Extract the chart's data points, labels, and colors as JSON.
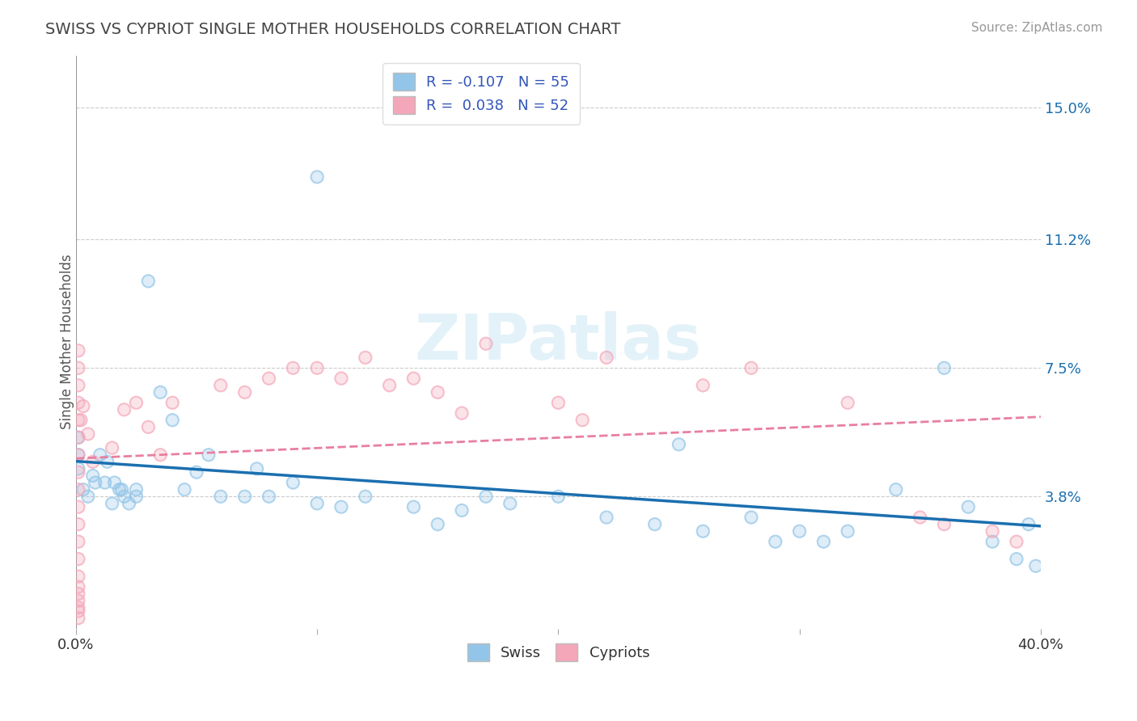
{
  "title": "SWISS VS CYPRIOT SINGLE MOTHER HOUSEHOLDS CORRELATION CHART",
  "source": "Source: ZipAtlas.com",
  "ylabel": "Single Mother Households",
  "xlim": [
    0.0,
    0.4
  ],
  "ylim": [
    0.0,
    0.165
  ],
  "yticks": [
    0.038,
    0.075,
    0.112,
    0.15
  ],
  "ytick_labels": [
    "3.8%",
    "7.5%",
    "11.2%",
    "15.0%"
  ],
  "xticks": [
    0.0,
    0.1,
    0.2,
    0.3,
    0.4
  ],
  "xtick_labels": [
    "0.0%",
    "",
    "",
    "",
    "40.0%"
  ],
  "swiss_color": "#93c5e8",
  "cypriot_color": "#f4a7b9",
  "swiss_line_color": "#1a6faf",
  "cypriot_line_color": "#e87fa0",
  "swiss_R": -0.107,
  "swiss_N": 55,
  "cypriot_R": 0.038,
  "cypriot_N": 52,
  "watermark": "ZIPatlas",
  "legend_R_color": "#3355bb",
  "swiss_x": [
    0.001,
    0.001,
    0.001,
    0.003,
    0.005,
    0.007,
    0.008,
    0.01,
    0.012,
    0.013,
    0.015,
    0.016,
    0.018,
    0.019,
    0.02,
    0.022,
    0.025,
    0.025,
    0.03,
    0.035,
    0.04,
    0.045,
    0.05,
    0.055,
    0.06,
    0.07,
    0.075,
    0.08,
    0.09,
    0.1,
    0.1,
    0.11,
    0.12,
    0.14,
    0.15,
    0.16,
    0.17,
    0.18,
    0.2,
    0.22,
    0.24,
    0.25,
    0.26,
    0.28,
    0.29,
    0.3,
    0.31,
    0.32,
    0.34,
    0.36,
    0.37,
    0.38,
    0.39,
    0.395,
    0.398
  ],
  "swiss_y": [
    0.05,
    0.046,
    0.055,
    0.04,
    0.038,
    0.044,
    0.042,
    0.05,
    0.042,
    0.048,
    0.036,
    0.042,
    0.04,
    0.04,
    0.038,
    0.036,
    0.04,
    0.038,
    0.1,
    0.068,
    0.06,
    0.04,
    0.045,
    0.05,
    0.038,
    0.038,
    0.046,
    0.038,
    0.042,
    0.036,
    0.13,
    0.035,
    0.038,
    0.035,
    0.03,
    0.034,
    0.038,
    0.036,
    0.038,
    0.032,
    0.03,
    0.053,
    0.028,
    0.032,
    0.025,
    0.028,
    0.025,
    0.028,
    0.04,
    0.075,
    0.035,
    0.025,
    0.02,
    0.03,
    0.018
  ],
  "cypriot_x": [
    0.001,
    0.001,
    0.001,
    0.001,
    0.001,
    0.001,
    0.001,
    0.001,
    0.001,
    0.001,
    0.001,
    0.001,
    0.001,
    0.001,
    0.001,
    0.001,
    0.001,
    0.001,
    0.001,
    0.001,
    0.002,
    0.003,
    0.005,
    0.007,
    0.015,
    0.02,
    0.025,
    0.03,
    0.035,
    0.04,
    0.06,
    0.07,
    0.08,
    0.09,
    0.1,
    0.11,
    0.12,
    0.13,
    0.14,
    0.15,
    0.16,
    0.17,
    0.2,
    0.21,
    0.22,
    0.26,
    0.28,
    0.32,
    0.35,
    0.36,
    0.38,
    0.39
  ],
  "cypriot_y": [
    0.08,
    0.075,
    0.07,
    0.065,
    0.06,
    0.055,
    0.05,
    0.045,
    0.04,
    0.035,
    0.03,
    0.025,
    0.02,
    0.015,
    0.012,
    0.01,
    0.008,
    0.006,
    0.005,
    0.003,
    0.06,
    0.064,
    0.056,
    0.048,
    0.052,
    0.063,
    0.065,
    0.058,
    0.05,
    0.065,
    0.07,
    0.068,
    0.072,
    0.075,
    0.075,
    0.072,
    0.078,
    0.07,
    0.072,
    0.068,
    0.062,
    0.082,
    0.065,
    0.06,
    0.078,
    0.07,
    0.075,
    0.065,
    0.032,
    0.03,
    0.028,
    0.025
  ]
}
